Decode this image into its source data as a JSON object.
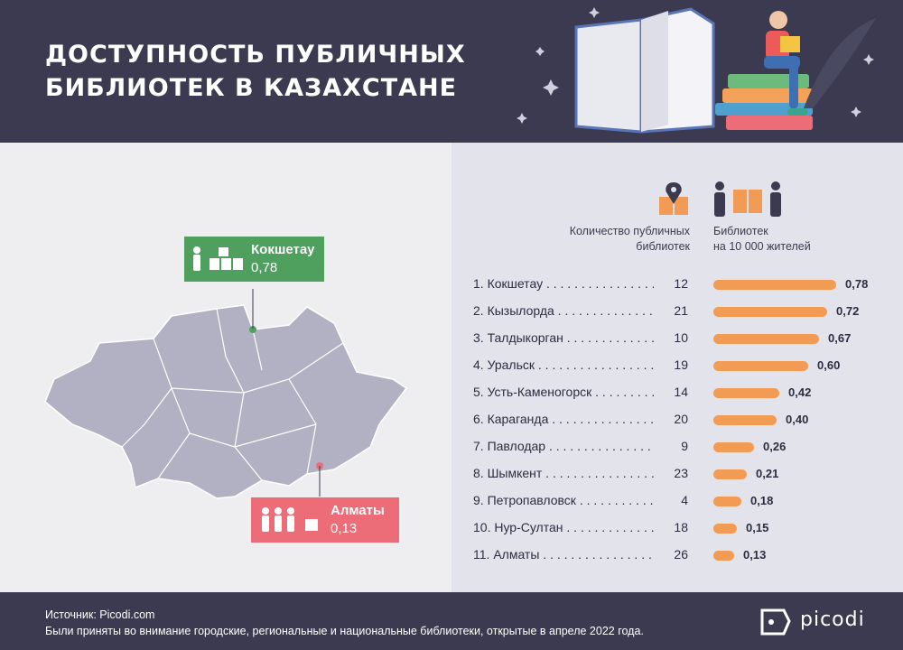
{
  "header": {
    "title_line1": "ДОСТУПНОСТЬ ПУБЛИЧНЫХ",
    "title_line2": "БИБЛИОТЕК В КАЗАХСТАНЕ"
  },
  "callouts": {
    "top": {
      "name": "Кокшетау",
      "value": "0,78",
      "color": "#4f9f5e"
    },
    "bottom": {
      "name": "Алматы",
      "value": "0,13",
      "color": "#ec6c78"
    }
  },
  "columns": {
    "count_header": [
      "Количество публичных",
      "библиотек"
    ],
    "ratio_header": [
      "Библиотек",
      "на 10 000 жителей"
    ]
  },
  "chart_data": {
    "type": "bar",
    "categories": [
      "1. Кокшетау",
      "2. Кызылорда",
      "3. Талдыкорган",
      "4. Уральск",
      "5. Усть-Каменогорск",
      "6. Караганда",
      "7. Павлодар",
      "8. Шымкент",
      "9. Петропавловск",
      "10. Нур-Султан",
      "11. Алматы"
    ],
    "library_counts": [
      12,
      21,
      10,
      19,
      14,
      20,
      9,
      23,
      4,
      18,
      26
    ],
    "values": [
      0.78,
      0.72,
      0.67,
      0.6,
      0.42,
      0.4,
      0.26,
      0.21,
      0.18,
      0.15,
      0.13
    ],
    "value_labels": [
      "0,78",
      "0,72",
      "0,67",
      "0,60",
      "0,42",
      "0,40",
      "0,26",
      "0,21",
      "0,18",
      "0,15",
      "0,13"
    ],
    "bar_color": "#f29b55"
  },
  "footer": {
    "source": "Источник: Picodi.com",
    "note": "Были приняты во внимание городские, региональные и национальные библиотеки, открытые в апреле 2022 года.",
    "brand": "picodi"
  }
}
